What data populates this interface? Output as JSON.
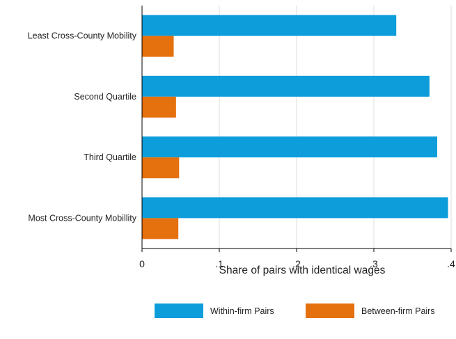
{
  "chart_data": {
    "type": "bar",
    "orientation": "horizontal",
    "categories": [
      "Least Cross-County Mobility",
      "Second Quartile",
      "Third Quartile",
      "Most Cross-County Mobillity"
    ],
    "series": [
      {
        "name": "Within-firm Pairs",
        "color": "#0d9ddb",
        "values": [
          0.329,
          0.372,
          0.382,
          0.396
        ]
      },
      {
        "name": "Between-firm Pairs",
        "color": "#e5700e",
        "values": [
          0.041,
          0.044,
          0.048,
          0.047
        ]
      }
    ],
    "xlabel": "Share of pairs with identical wages",
    "ylabel": "",
    "xlim": [
      0,
      0.4
    ],
    "xticks": [
      {
        "value": 0,
        "label": "0"
      },
      {
        "value": 0.1,
        "label": ".1"
      },
      {
        "value": 0.2,
        "label": ".2"
      },
      {
        "value": 0.3,
        "label": ".3"
      },
      {
        "value": 0.4,
        "label": ".4"
      }
    ],
    "grid": true,
    "legend_position": "bottom"
  }
}
